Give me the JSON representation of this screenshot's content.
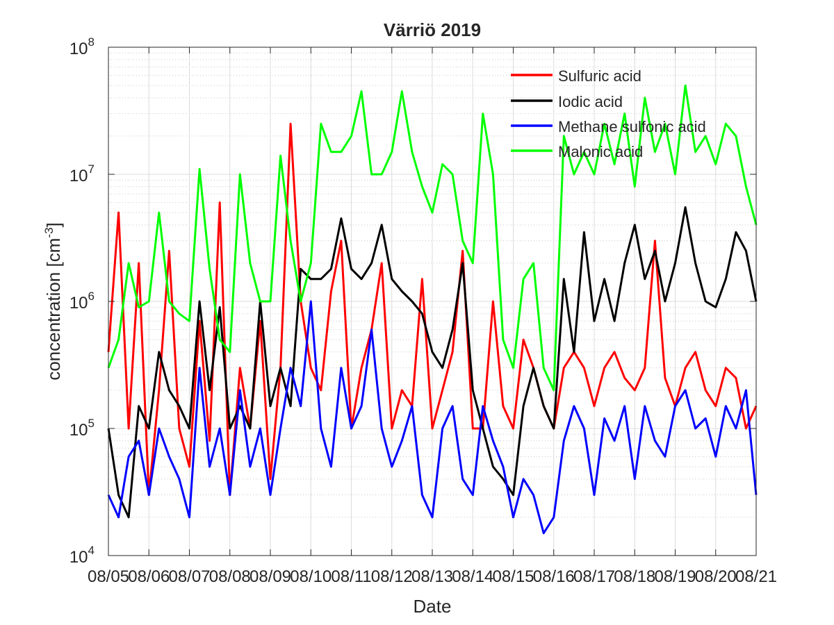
{
  "chart_data": {
    "type": "line",
    "title": "Värriö 2019",
    "xlabel": "Date",
    "ylabel_main": "concentration [cm",
    "ylabel_sup": "-3",
    "ylabel_close": "]",
    "yscale": "log",
    "ylim": [
      10000,
      100000000
    ],
    "y_tick_values": [
      10000,
      100000,
      1000000,
      10000000,
      100000000
    ],
    "y_tick_labels": [
      {
        "base": "10",
        "exp": "4"
      },
      {
        "base": "10",
        "exp": "5"
      },
      {
        "base": "10",
        "exp": "6"
      },
      {
        "base": "10",
        "exp": "7"
      },
      {
        "base": "10",
        "exp": "8"
      }
    ],
    "xlim": [
      "2019-08-05",
      "2019-08-21"
    ],
    "x_ticks": [
      "08/05",
      "08/06",
      "08/07",
      "08/08",
      "08/09",
      "08/10",
      "08/11",
      "08/12",
      "08/13",
      "08/14",
      "08/15",
      "08/16",
      "08/17",
      "08/18",
      "08/19",
      "08/20",
      "08/21"
    ],
    "grid": true,
    "minor_grid": true,
    "legend_position": "top-right",
    "x": [
      "2019-08-05",
      "2019-08-05 06h",
      "2019-08-05 12h",
      "2019-08-05 18h",
      "2019-08-06",
      "2019-08-06 06h",
      "2019-08-06 12h",
      "2019-08-06 18h",
      "2019-08-07",
      "2019-08-07 06h",
      "2019-08-07 12h",
      "2019-08-07 18h",
      "2019-08-08",
      "2019-08-08 06h",
      "2019-08-08 12h",
      "2019-08-08 18h",
      "2019-08-09",
      "2019-08-09 06h",
      "2019-08-09 12h",
      "2019-08-09 18h",
      "2019-08-10",
      "2019-08-10 06h",
      "2019-08-10 12h",
      "2019-08-10 18h",
      "2019-08-11",
      "2019-08-11 06h",
      "2019-08-11 12h",
      "2019-08-11 18h",
      "2019-08-12",
      "2019-08-12 06h",
      "2019-08-12 12h",
      "2019-08-12 18h",
      "2019-08-13",
      "2019-08-13 06h",
      "2019-08-13 12h",
      "2019-08-13 18h",
      "2019-08-14",
      "2019-08-14 06h",
      "2019-08-14 12h",
      "2019-08-14 18h",
      "2019-08-15",
      "2019-08-15 06h",
      "2019-08-15 12h",
      "2019-08-15 18h",
      "2019-08-16",
      "2019-08-16 06h",
      "2019-08-16 12h",
      "2019-08-16 18h",
      "2019-08-17",
      "2019-08-17 06h",
      "2019-08-17 12h",
      "2019-08-17 18h",
      "2019-08-18",
      "2019-08-18 06h",
      "2019-08-18 12h",
      "2019-08-18 18h",
      "2019-08-19",
      "2019-08-19 06h",
      "2019-08-19 12h",
      "2019-08-19 18h",
      "2019-08-20",
      "2019-08-20 06h",
      "2019-08-20 12h",
      "2019-08-20 18h",
      "2019-08-21"
    ],
    "series": [
      {
        "name": "Sulfuric acid",
        "color": "#ff0000",
        "values": [
          400000,
          5000000,
          100000,
          2000000,
          30000,
          200000,
          2500000,
          100000,
          50000,
          700000,
          80000,
          6000000,
          30000,
          300000,
          100000,
          700000,
          40000,
          300000,
          25000000,
          1000000,
          300000,
          200000,
          1200000,
          3000000,
          100000,
          300000,
          600000,
          2000000,
          100000,
          200000,
          150000,
          1500000,
          100000,
          200000,
          400000,
          2500000,
          100000,
          100000,
          1000000,
          150000,
          100000,
          500000,
          300000,
          150000,
          100000,
          300000,
          400000,
          300000,
          150000,
          300000,
          400000,
          250000,
          200000,
          300000,
          3000000,
          250000,
          150000,
          300000,
          400000,
          200000,
          150000,
          300000,
          250000,
          100000,
          150000
        ]
      },
      {
        "name": "Iodic acid",
        "color": "#000000",
        "values": [
          100000,
          30000,
          20000,
          150000,
          100000,
          400000,
          200000,
          150000,
          100000,
          1000000,
          200000,
          900000,
          100000,
          150000,
          100000,
          1000000,
          150000,
          300000,
          150000,
          1800000,
          1500000,
          1500000,
          1800000,
          4500000,
          1800000,
          1500000,
          2000000,
          4000000,
          1500000,
          1200000,
          1000000,
          800000,
          400000,
          300000,
          600000,
          2000000,
          200000,
          100000,
          50000,
          40000,
          30000,
          150000,
          300000,
          150000,
          100000,
          1500000,
          400000,
          3500000,
          700000,
          1500000,
          700000,
          2000000,
          4000000,
          1500000,
          2500000,
          1000000,
          2000000,
          5500000,
          2000000,
          1000000,
          900000,
          1500000,
          3500000,
          2500000,
          1000000
        ]
      },
      {
        "name": "Methane sulfonic acid",
        "color": "#0000ff",
        "values": [
          30000,
          20000,
          60000,
          80000,
          30000,
          100000,
          60000,
          40000,
          20000,
          300000,
          50000,
          100000,
          30000,
          200000,
          50000,
          100000,
          30000,
          100000,
          300000,
          150000,
          1000000,
          100000,
          50000,
          300000,
          100000,
          150000,
          600000,
          100000,
          50000,
          80000,
          150000,
          30000,
          20000,
          100000,
          150000,
          40000,
          30000,
          150000,
          80000,
          50000,
          20000,
          40000,
          30000,
          15000,
          20000,
          80000,
          150000,
          100000,
          30000,
          120000,
          80000,
          150000,
          40000,
          150000,
          80000,
          60000,
          150000,
          200000,
          100000,
          120000,
          60000,
          150000,
          100000,
          200000,
          30000
        ]
      },
      {
        "name": "Malonic acid",
        "color": "#00ff00",
        "values": [
          300000,
          500000,
          2000000,
          900000,
          1000000,
          5000000,
          1000000,
          800000,
          700000,
          11000000,
          1800000,
          500000,
          400000,
          10000000,
          2000000,
          1000000,
          1000000,
          14000000,
          3000000,
          1000000,
          2000000,
          25000000,
          15000000,
          15000000,
          20000000,
          45000000,
          10000000,
          10000000,
          15000000,
          45000000,
          15000000,
          8000000,
          5000000,
          12000000,
          10000000,
          3000000,
          2000000,
          30000000,
          10000000,
          500000,
          300000,
          1500000,
          2000000,
          300000,
          200000,
          20000000,
          10000000,
          15000000,
          10000000,
          25000000,
          12000000,
          30000000,
          8000000,
          40000000,
          15000000,
          25000000,
          10000000,
          50000000,
          15000000,
          20000000,
          12000000,
          25000000,
          20000000,
          8000000,
          4000000
        ]
      }
    ]
  }
}
